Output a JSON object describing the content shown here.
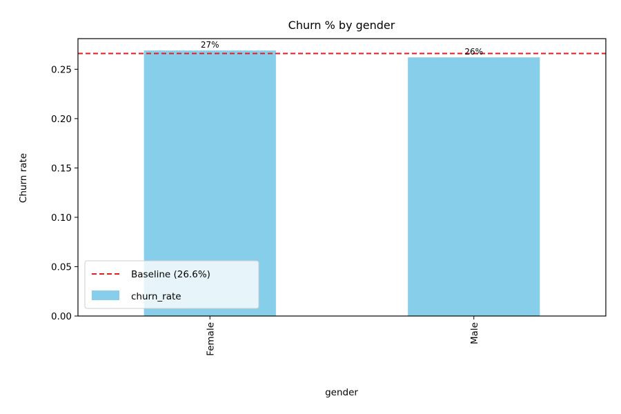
{
  "chart_data": {
    "type": "bar",
    "title": "Churn % by gender",
    "xlabel": "gender",
    "ylabel": "Churn rate",
    "categories": [
      "Female",
      "Male"
    ],
    "series": [
      {
        "name": "churn_rate",
        "values": [
          0.269,
          0.262
        ],
        "color": "#87CEEB"
      }
    ],
    "data_labels": [
      "27%",
      "26%"
    ],
    "baseline": {
      "label": "Baseline (26.6%)",
      "value": 0.266,
      "color": "#e41a1c",
      "style": "dashed"
    },
    "ylim": [
      0,
      0.281
    ],
    "yticks": [
      "0.00",
      "0.05",
      "0.10",
      "0.15",
      "0.20",
      "0.25"
    ],
    "ytick_values": [
      0,
      0.05,
      0.1,
      0.15,
      0.2,
      0.25
    ],
    "xtick_rotation": "vertical",
    "legend": {
      "position": "lower-left"
    },
    "grid": false
  }
}
